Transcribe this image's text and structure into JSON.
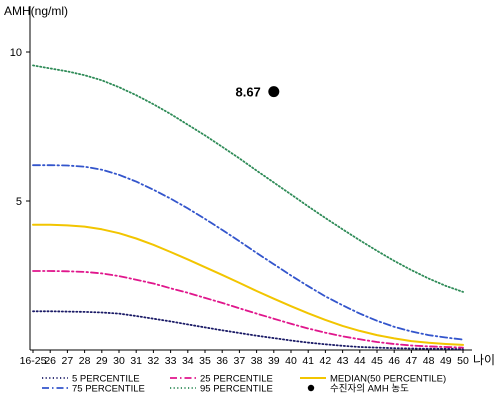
{
  "chart_data": {
    "type": "line",
    "ylabel": "AMH(ng/ml)",
    "xlabel": "나이",
    "x": [
      "16-25",
      "26",
      "27",
      "28",
      "29",
      "30",
      "31",
      "32",
      "33",
      "34",
      "35",
      "36",
      "37",
      "38",
      "39",
      "40",
      "41",
      "42",
      "43",
      "44",
      "45",
      "46",
      "47",
      "48",
      "49",
      "50"
    ],
    "yticks": [
      5,
      10
    ],
    "ylim": [
      0,
      11
    ],
    "grid": false,
    "legend_position": "bottom",
    "series": [
      {
        "name": "5 PERCENTILE",
        "color": "#1a1a66",
        "dash": "dotted",
        "values": [
          1.3,
          1.3,
          1.29,
          1.28,
          1.26,
          1.22,
          1.14,
          1.05,
          0.96,
          0.86,
          0.76,
          0.66,
          0.57,
          0.48,
          0.4,
          0.32,
          0.25,
          0.19,
          0.14,
          0.1,
          0.08,
          0.06,
          0.05,
          0.04,
          0.04,
          0.03
        ]
      },
      {
        "name": "25 PERCENTILE",
        "color": "#e0168c",
        "dash": "dashdot",
        "values": [
          2.65,
          2.65,
          2.64,
          2.62,
          2.57,
          2.48,
          2.36,
          2.23,
          2.07,
          1.92,
          1.75,
          1.58,
          1.4,
          1.22,
          1.05,
          0.88,
          0.72,
          0.58,
          0.46,
          0.36,
          0.27,
          0.2,
          0.15,
          0.12,
          0.1,
          0.08
        ]
      },
      {
        "name": "75 PERCENTILE",
        "color": "#3355cc",
        "dash": "dashdot",
        "values": [
          6.2,
          6.2,
          6.19,
          6.15,
          6.05,
          5.88,
          5.65,
          5.38,
          5.08,
          4.75,
          4.4,
          4.03,
          3.65,
          3.26,
          2.88,
          2.5,
          2.14,
          1.8,
          1.5,
          1.22,
          0.98,
          0.78,
          0.62,
          0.5,
          0.42,
          0.35
        ]
      },
      {
        "name": "95 PERCENTILE",
        "color": "#2e8b57",
        "dash": "dotted",
        "values": [
          9.55,
          9.45,
          9.35,
          9.22,
          9.05,
          8.82,
          8.55,
          8.25,
          7.92,
          7.56,
          7.2,
          6.82,
          6.43,
          6.02,
          5.62,
          5.22,
          4.82,
          4.43,
          4.05,
          3.68,
          3.33,
          2.99,
          2.68,
          2.4,
          2.15,
          1.95
        ]
      },
      {
        "name": "MEDIAN(50 PERCENTILE)",
        "color": "#f2c500",
        "dash": "solid",
        "values": [
          4.2,
          4.2,
          4.18,
          4.14,
          4.05,
          3.92,
          3.74,
          3.53,
          3.29,
          3.04,
          2.78,
          2.52,
          2.25,
          1.98,
          1.72,
          1.47,
          1.23,
          1.01,
          0.81,
          0.64,
          0.5,
          0.39,
          0.3,
          0.24,
          0.2,
          0.17
        ]
      }
    ],
    "point": {
      "name": "수진자의 AMH 농도",
      "x": "39",
      "y": 8.67,
      "label": "8.67",
      "color": "#000000"
    }
  }
}
